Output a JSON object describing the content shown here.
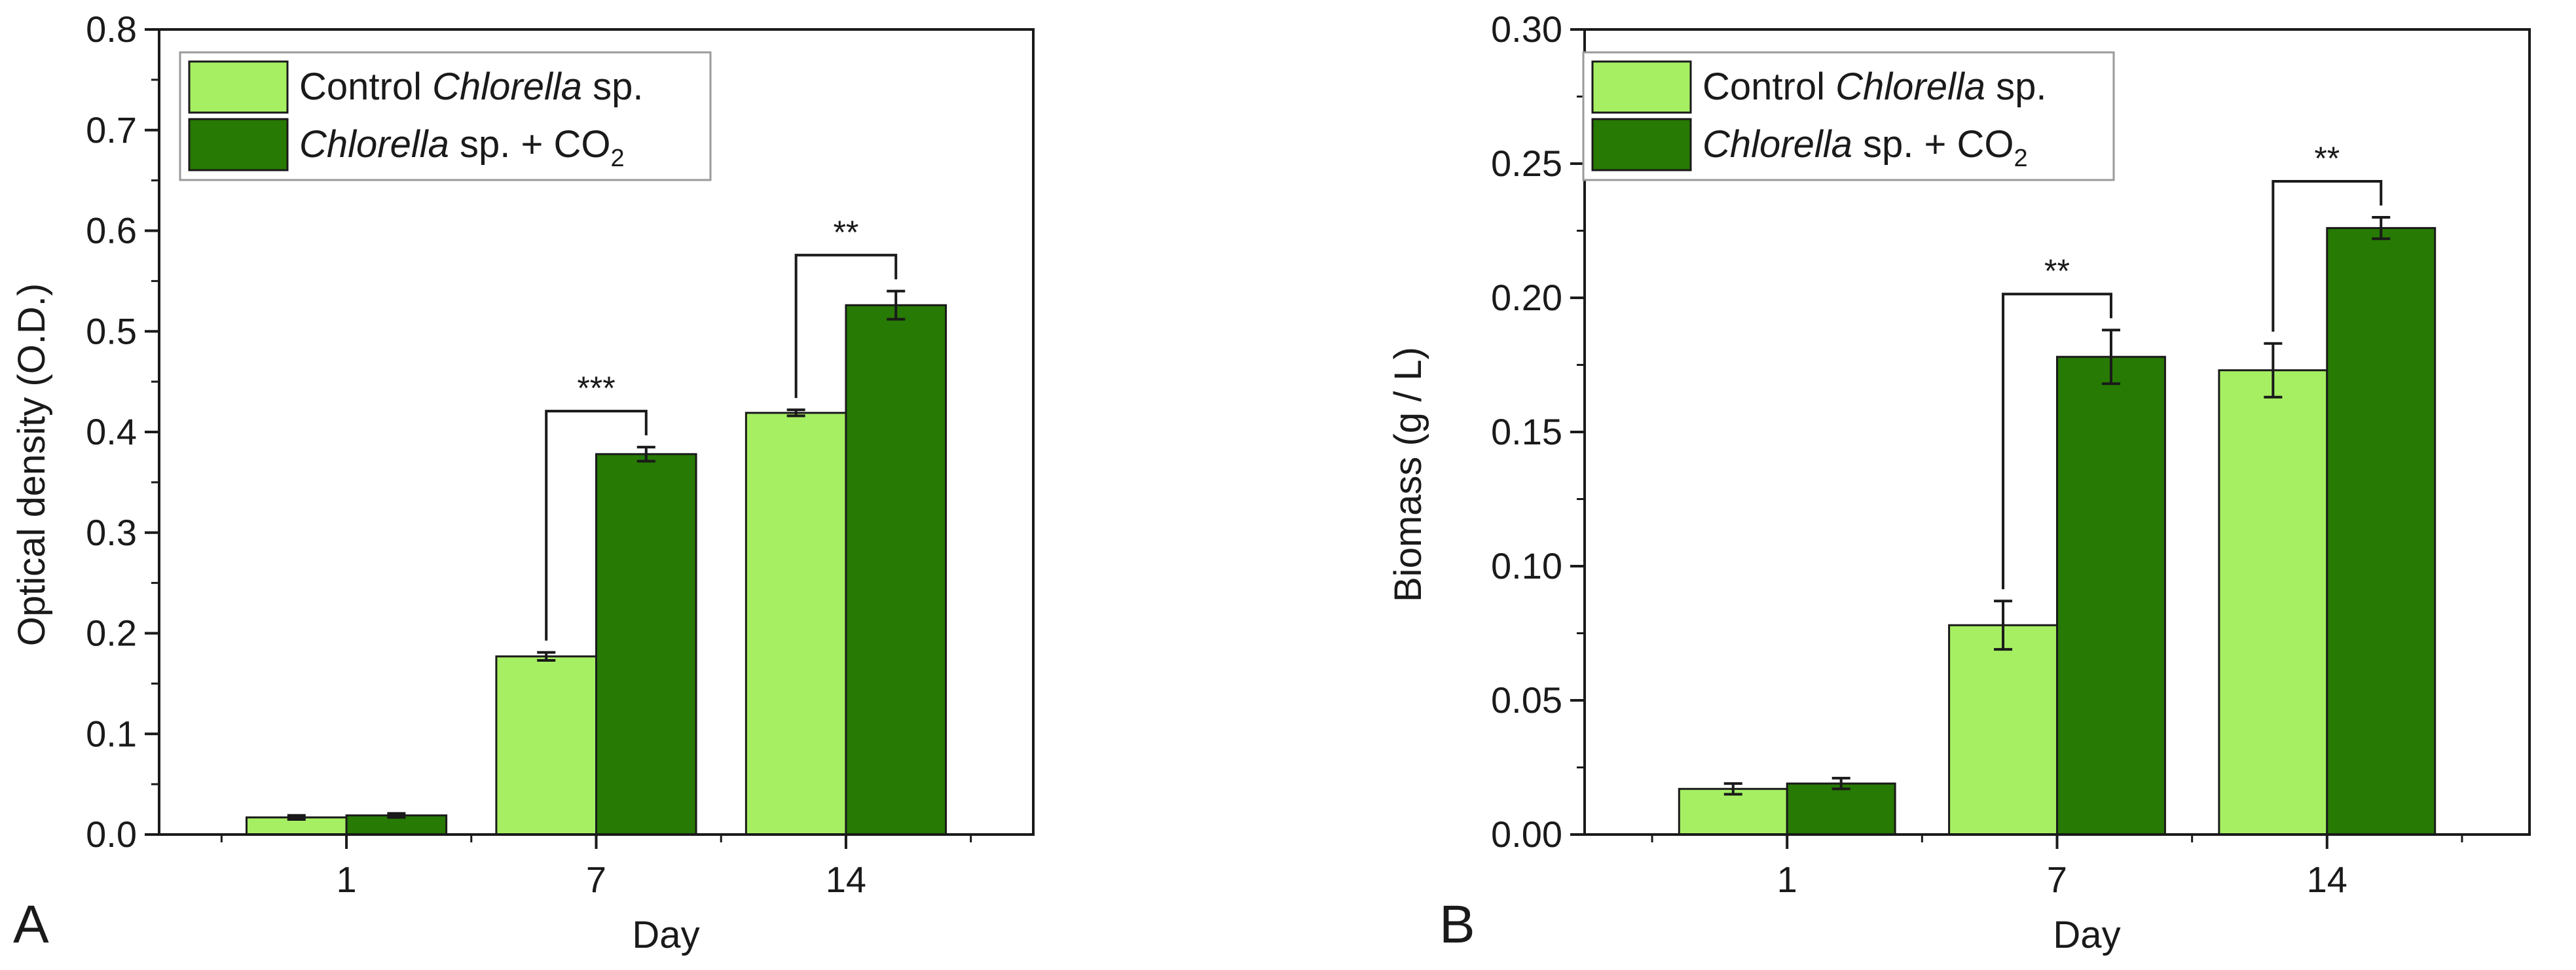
{
  "figure": {
    "background": "#ffffff"
  },
  "chart_data": [
    {
      "type": "bar",
      "panel_label": "A",
      "title": "",
      "xlabel": "Day",
      "ylabel": "Optical density (O.D.)",
      "categories": [
        "1",
        "7",
        "14"
      ],
      "ylim": [
        0,
        0.8
      ],
      "yticks": [
        "0.0",
        "0.1",
        "0.2",
        "0.3",
        "0.4",
        "0.5",
        "0.6",
        "0.7",
        "0.8"
      ],
      "grid": false,
      "legend_position": "top-left",
      "series": [
        {
          "name": "Control Chlorella sp.",
          "legend_parts": [
            "Control ",
            "Chlorella",
            " sp."
          ],
          "color": "#a6ef63",
          "values": [
            0.017,
            0.177,
            0.419
          ],
          "errors": [
            0.002,
            0.004,
            0.003
          ]
        },
        {
          "name": "Chlorella sp. + CO2",
          "legend_parts": [
            "Chlorella",
            " sp. + CO",
            "2"
          ],
          "color": "#277a03",
          "values": [
            0.019,
            0.378,
            0.526
          ],
          "errors": [
            0.002,
            0.007,
            0.014
          ]
        }
      ],
      "significance": [
        {
          "category_index": 1,
          "label": "***"
        },
        {
          "category_index": 2,
          "label": "**"
        }
      ]
    },
    {
      "type": "bar",
      "panel_label": "B",
      "title": "",
      "xlabel": "Day",
      "ylabel": "Biomass (g / L)",
      "categories": [
        "1",
        "7",
        "14"
      ],
      "ylim": [
        0,
        0.3
      ],
      "yticks": [
        "0.00",
        "0.05",
        "0.10",
        "0.15",
        "0.20",
        "0.25",
        "0.30"
      ],
      "grid": false,
      "legend_position": "top-left",
      "series": [
        {
          "name": "Control Chlorella sp.",
          "legend_parts": [
            "Control ",
            "Chlorella",
            " sp."
          ],
          "color": "#a6ef63",
          "values": [
            0.017,
            0.078,
            0.173
          ],
          "errors": [
            0.002,
            0.009,
            0.01
          ]
        },
        {
          "name": "Chlorella sp. + CO2",
          "legend_parts": [
            "Chlorella",
            " sp. + CO",
            "2"
          ],
          "color": "#277a03",
          "values": [
            0.019,
            0.178,
            0.226
          ],
          "errors": [
            0.002,
            0.01,
            0.004
          ]
        }
      ],
      "significance": [
        {
          "category_index": 1,
          "label": "**"
        },
        {
          "category_index": 2,
          "label": "**"
        }
      ]
    }
  ]
}
